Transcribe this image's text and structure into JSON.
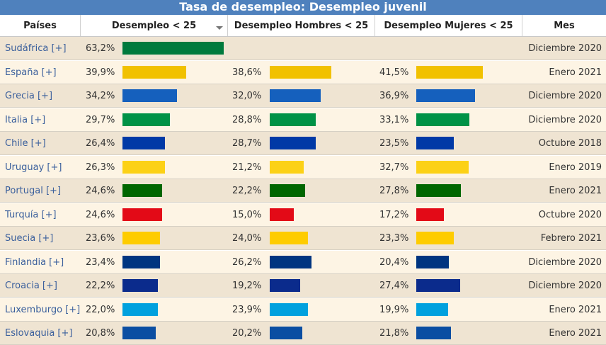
{
  "title": "Tasa de desempleo: Desempleo juvenil",
  "columns": [
    "Países",
    "Desempleo < 25",
    "Desempleo Hombres < 25",
    "Desempleo Mujeres < 25",
    "Mes"
  ],
  "chart_data": {
    "type": "table",
    "title": "Tasa de desempleo: Desempleo juvenil",
    "rows": [
      {
        "country": "Sudáfrica [+]",
        "total": "63,2%",
        "total_v": 63.2,
        "men": "",
        "men_v": null,
        "women": "",
        "women_v": null,
        "month": "Diciembre 2020",
        "color": "#007a3d"
      },
      {
        "country": "España [+]",
        "total": "39,9%",
        "total_v": 39.9,
        "men": "38,6%",
        "men_v": 38.6,
        "women": "41,5%",
        "women_v": 41.5,
        "month": "Enero 2021",
        "color": "#f1c100"
      },
      {
        "country": "Grecia [+]",
        "total": "34,2%",
        "total_v": 34.2,
        "men": "32,0%",
        "men_v": 32.0,
        "women": "36,9%",
        "women_v": 36.9,
        "month": "Diciembre 2020",
        "color": "#1560bd"
      },
      {
        "country": "Italia [+]",
        "total": "29,7%",
        "total_v": 29.7,
        "men": "28,8%",
        "men_v": 28.8,
        "women": "33,1%",
        "women_v": 33.1,
        "month": "Diciembre 2020",
        "color": "#009246"
      },
      {
        "country": "Chile [+]",
        "total": "26,4%",
        "total_v": 26.4,
        "men": "28,7%",
        "men_v": 28.7,
        "women": "23,5%",
        "women_v": 23.5,
        "month": "Octubre 2018",
        "color": "#0039a6"
      },
      {
        "country": "Uruguay [+]",
        "total": "26,3%",
        "total_v": 26.3,
        "men": "21,2%",
        "men_v": 21.2,
        "women": "32,7%",
        "women_v": 32.7,
        "month": "Enero 2019",
        "color": "#fcd116"
      },
      {
        "country": "Portugal [+]",
        "total": "24,6%",
        "total_v": 24.6,
        "men": "22,2%",
        "men_v": 22.2,
        "women": "27,8%",
        "women_v": 27.8,
        "month": "Enero 2021",
        "color": "#006600"
      },
      {
        "country": "Turquía [+]",
        "total": "24,6%",
        "total_v": 24.6,
        "men": "15,0%",
        "men_v": 15.0,
        "women": "17,2%",
        "women_v": 17.2,
        "month": "Octubre 2020",
        "color": "#e30a17"
      },
      {
        "country": "Suecia [+]",
        "total": "23,6%",
        "total_v": 23.6,
        "men": "24,0%",
        "men_v": 24.0,
        "women": "23,3%",
        "women_v": 23.3,
        "month": "Febrero 2021",
        "color": "#fecc00"
      },
      {
        "country": "Finlandia [+]",
        "total": "23,4%",
        "total_v": 23.4,
        "men": "26,2%",
        "men_v": 26.2,
        "women": "20,4%",
        "women_v": 20.4,
        "month": "Diciembre 2020",
        "color": "#003580"
      },
      {
        "country": "Croacia [+]",
        "total": "22,2%",
        "total_v": 22.2,
        "men": "19,2%",
        "men_v": 19.2,
        "women": "27,4%",
        "women_v": 27.4,
        "month": "Diciembre 2020",
        "color": "#0b2b8c"
      },
      {
        "country": "Luxemburgo [+]",
        "total": "22,0%",
        "total_v": 22.0,
        "men": "23,9%",
        "men_v": 23.9,
        "women": "19,9%",
        "women_v": 19.9,
        "month": "Enero 2021",
        "color": "#00a1de"
      },
      {
        "country": "Eslovaquia [+]",
        "total": "20,8%",
        "total_v": 20.8,
        "men": "20,2%",
        "men_v": 20.2,
        "women": "21,8%",
        "women_v": 21.8,
        "month": "Enero 2021",
        "color": "#0b4ea2"
      }
    ]
  }
}
